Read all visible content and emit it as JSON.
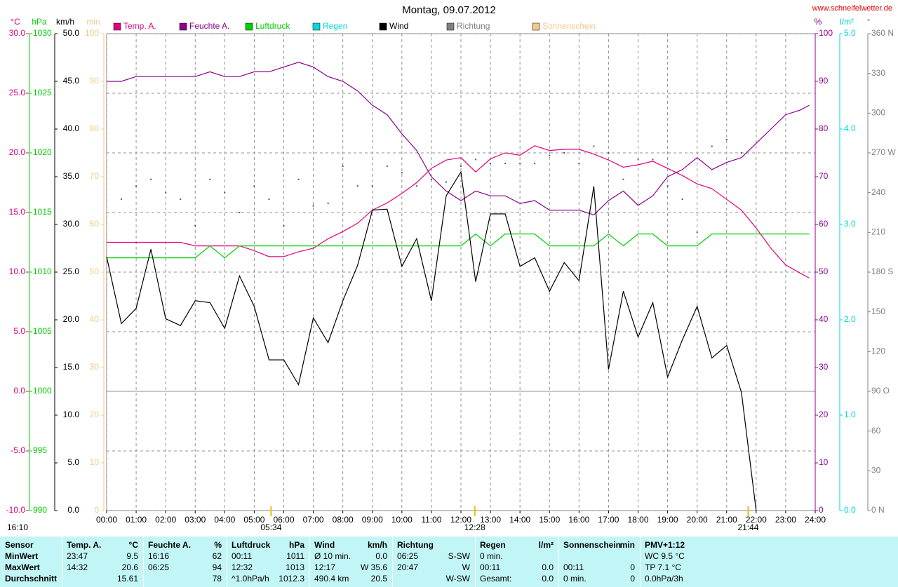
{
  "chart_data": {
    "type": "line",
    "title": "Montag, 09.07.2012",
    "source": "www.schneifelwetter.de",
    "timestamp": "16:10",
    "grid": true,
    "xlim": [
      0,
      24
    ],
    "xticks": [
      {
        "value": 0,
        "label": "00:00"
      },
      {
        "value": 1,
        "label": "01:00"
      },
      {
        "value": 2,
        "label": "02:00"
      },
      {
        "value": 3,
        "label": "03:00"
      },
      {
        "value": 4,
        "label": "04:00"
      },
      {
        "value": 5,
        "label": "05:00"
      },
      {
        "value": 6,
        "label": "06:00"
      },
      {
        "value": 7,
        "label": "07:00"
      },
      {
        "value": 8,
        "label": "08:00"
      },
      {
        "value": 9,
        "label": "09:00"
      },
      {
        "value": 10,
        "label": "10:00"
      },
      {
        "value": 11,
        "label": "11:00"
      },
      {
        "value": 12,
        "label": "12:00"
      },
      {
        "value": 13,
        "label": "13:00"
      },
      {
        "value": 14,
        "label": "14:00"
      },
      {
        "value": 15,
        "label": "15:00"
      },
      {
        "value": 16,
        "label": "16:00"
      },
      {
        "value": 17,
        "label": "17:00"
      },
      {
        "value": 18,
        "label": "18:00"
      },
      {
        "value": 19,
        "label": "19:00"
      },
      {
        "value": 20,
        "label": "20:00"
      },
      {
        "value": 21,
        "label": "21:00"
      },
      {
        "value": 22,
        "label": "22:00"
      },
      {
        "value": 23,
        "label": "23:00"
      },
      {
        "value": 24,
        "label": "24:00"
      }
    ],
    "x": [
      0,
      0.5,
      1,
      1.5,
      2,
      2.5,
      3,
      3.5,
      4,
      4.5,
      5,
      5.5,
      6,
      6.5,
      7,
      7.5,
      8,
      8.5,
      9,
      9.5,
      10,
      10.5,
      11,
      11.5,
      12,
      12.5,
      13,
      13.5,
      14,
      14.5,
      15,
      15.5,
      16,
      16.5,
      17,
      17.5,
      18,
      18.5,
      19,
      19.5,
      20,
      20.5,
      21,
      21.5,
      22,
      22.5,
      23,
      23.5,
      23.8
    ],
    "series": [
      {
        "name": "Temp. A.",
        "unit": "°C",
        "color": "#e0007c",
        "ylim": [
          -10,
          30
        ],
        "yticks": [
          {
            "value": -10,
            "label": "-10.0"
          },
          {
            "value": -5,
            "label": "-5.0"
          },
          {
            "value": 0,
            "label": "0.0"
          },
          {
            "value": 5,
            "label": "5.0"
          },
          {
            "value": 10,
            "label": "10.0"
          },
          {
            "value": 15,
            "label": "15.0"
          },
          {
            "value": 20,
            "label": "20.0"
          },
          {
            "value": 25,
            "label": "25.0"
          },
          {
            "value": 30,
            "label": "30.0"
          }
        ],
        "values": [
          12.5,
          12.5,
          12.5,
          12.5,
          12.5,
          12.5,
          12.2,
          12.2,
          12.2,
          12.2,
          11.8,
          11.3,
          11.3,
          11.7,
          12.0,
          12.8,
          13.4,
          14.1,
          15.2,
          15.8,
          16.6,
          17.5,
          18.7,
          19.4,
          19.6,
          18.4,
          19.5,
          20.0,
          19.8,
          20.6,
          20.2,
          20.3,
          20.3,
          19.9,
          19.4,
          18.8,
          19.0,
          19.3,
          18.7,
          18.1,
          17.4,
          17.0,
          16.1,
          15.2,
          13.7,
          12.0,
          10.6,
          9.9,
          9.5
        ]
      },
      {
        "name": "Feuchte A.",
        "unit": "%",
        "color": "#8c008c",
        "ylim": [
          0,
          100
        ],
        "yticks": [
          0,
          10,
          20,
          30,
          40,
          50,
          60,
          70,
          80,
          90,
          100
        ],
        "values": [
          90,
          90,
          91,
          91,
          91,
          91,
          91,
          92,
          91,
          91,
          92,
          92,
          93,
          94,
          93,
          91,
          90,
          88,
          85,
          83,
          79,
          75.5,
          70,
          67,
          65,
          67,
          66,
          66,
          64.4,
          65,
          63,
          63,
          63,
          62,
          65,
          67,
          64,
          66,
          70,
          71.5,
          74,
          71.5,
          73,
          74,
          77,
          80,
          83,
          84,
          85
        ]
      },
      {
        "name": "Luftdruck",
        "unit": "hPa",
        "color": "#00d000",
        "ylim": [
          990,
          1030
        ],
        "yticks": [
          990,
          995,
          1000,
          1005,
          1010,
          1015,
          1020,
          1025,
          1030
        ],
        "values": [
          1011.2,
          1011.2,
          1011.2,
          1011.2,
          1011.2,
          1011.2,
          1011.2,
          1012.2,
          1011.2,
          1012.2,
          1012.2,
          1012.2,
          1012.2,
          1012.2,
          1012.2,
          1012.2,
          1012.2,
          1012.2,
          1012.2,
          1012.2,
          1012.2,
          1012.2,
          1012.2,
          1012.2,
          1012.2,
          1013.2,
          1012.2,
          1013.2,
          1013.2,
          1013.2,
          1012.2,
          1012.2,
          1012.2,
          1012.2,
          1013.2,
          1012.2,
          1013.2,
          1013.2,
          1012.2,
          1012.2,
          1012.2,
          1013.2,
          1013.2,
          1013.2,
          1013.2,
          1013.2,
          1013.2,
          1013.2,
          1013.2
        ]
      },
      {
        "name": "Regen",
        "unit": "l/m²",
        "color": "#00d8d8",
        "ylim": [
          0,
          5
        ],
        "yticks": [
          {
            "value": 0,
            "label": "0.0"
          },
          {
            "value": 1,
            "label": "1.0"
          },
          {
            "value": 2,
            "label": "2.0"
          },
          {
            "value": 3,
            "label": "3.0"
          },
          {
            "value": 4,
            "label": "4.0"
          },
          {
            "value": 5,
            "label": "5.0"
          }
        ]
      },
      {
        "name": "Wind",
        "unit": "km/h",
        "color": "#000000",
        "ylim": [
          0,
          50
        ],
        "yticks": [
          {
            "value": 0,
            "label": "0.0"
          },
          {
            "value": 5,
            "label": "5.0"
          },
          {
            "value": 10,
            "label": "10.0"
          },
          {
            "value": 15,
            "label": "15.0"
          },
          {
            "value": 20,
            "label": "20.0"
          },
          {
            "value": 25,
            "label": "25.0"
          },
          {
            "value": 30,
            "label": "30.0"
          },
          {
            "value": 35,
            "label": "35.0"
          },
          {
            "value": 40,
            "label": "40.0"
          },
          {
            "value": 45,
            "label": "45.0"
          },
          {
            "value": 50,
            "label": "50.0"
          }
        ],
        "values": [
          26.6,
          19.6,
          21.2,
          27.4,
          20.1,
          19.4,
          22,
          21.8,
          19.1,
          24.6,
          21.4,
          15.8,
          15.8,
          13.2,
          20.2,
          17.6,
          22,
          25.7,
          31.5,
          31.6,
          25.6,
          28.5,
          22,
          33,
          35.5,
          24,
          31.1,
          31.1,
          25.6,
          26.5,
          23,
          26,
          24.1,
          34,
          14.8,
          23,
          18.2,
          21.8,
          14,
          17.9,
          21.4,
          16,
          17.3,
          12.4,
          0,
          null,
          null,
          null,
          null
        ]
      },
      {
        "name": "Richtung",
        "unit": "°",
        "color": "#808080",
        "style": "dots",
        "ylim": [
          0,
          360
        ],
        "yticks": [
          {
            "value": 0,
            "label": "0 N"
          },
          30,
          60,
          {
            "value": 90,
            "label": "90 O"
          },
          120,
          150,
          {
            "value": 180,
            "label": "180 S"
          },
          210,
          240,
          {
            "value": 270,
            "label": "270 W"
          },
          300,
          330,
          {
            "value": 360,
            "label": "360 N"
          }
        ],
        "values": [
          null,
          235,
          245,
          250,
          240,
          235,
          215,
          250,
          240,
          225,
          245,
          235,
          215,
          250,
          230,
          232,
          260,
          245,
          245,
          260,
          255,
          245,
          250,
          248,
          260,
          265,
          262,
          262,
          262,
          262,
          268,
          270,
          262,
          275,
          270,
          250,
          265,
          265,
          245,
          235,
          210,
          275,
          280,
          270,
          null,
          null,
          null,
          null,
          null
        ]
      },
      {
        "name": "Sonnenschein",
        "unit": "min",
        "color": "#f2c88c",
        "ylim": [
          0,
          100
        ],
        "yticks": [
          0,
          10,
          20,
          30,
          40,
          50,
          60,
          70,
          80,
          90,
          100
        ]
      }
    ],
    "annotations": [
      {
        "x": 5.57,
        "label": "05:34"
      },
      {
        "x": 12.47,
        "label": "12:28"
      },
      {
        "x": 21.73,
        "label": "21:44"
      }
    ]
  },
  "table": {
    "columns": [
      {
        "name": "Sensor"
      },
      {
        "name": "Temp. A.",
        "unit": "°C"
      },
      {
        "name": "Feuchte A.",
        "unit": "%"
      },
      {
        "name": "Luftdruck",
        "unit": "hPa"
      },
      {
        "name": "Wind",
        "unit": "km/h"
      },
      {
        "name": "Richtung"
      },
      {
        "name": "Regen",
        "unit": "l/m²"
      },
      {
        "name": "Sonnenschein",
        "unit": "min"
      },
      {
        "name": "PMV+1:12"
      }
    ],
    "rows": [
      {
        "label": "MinWert",
        "cells": [
          {
            "left": "23:47",
            "right": "9.5"
          },
          {
            "left": "16:16",
            "right": "62"
          },
          {
            "left": "00:11",
            "right": "1011"
          },
          {
            "left": "Ø 10 min.",
            "right": "0.0"
          },
          {
            "left": "06:25",
            "right": "S-SW"
          },
          {
            "left": "0 min."
          },
          {},
          {
            "left": "WC 9.5 °C"
          }
        ]
      },
      {
        "label": "MaxWert",
        "cells": [
          {
            "left": "14:32",
            "right": "20.6"
          },
          {
            "left": "06:25",
            "right": "94"
          },
          {
            "left": "12:32",
            "right": "1013"
          },
          {
            "left": "12:17",
            "right": "W 35.6"
          },
          {
            "left": "20:47",
            "right": "W"
          },
          {
            "left": "00:11",
            "right": "0.0"
          },
          {
            "left": "00:11",
            "right": "0"
          },
          {
            "left": "TP 7.1 °C"
          }
        ]
      },
      {
        "label": "Durchschnitt",
        "cells": [
          {
            "right": "15.61"
          },
          {
            "right": "78"
          },
          {
            "left": "^1.0hPa/h",
            "right": "1012.3"
          },
          {
            "left": "490.4 km",
            "right": "20.5"
          },
          {
            "right": "W-SW"
          },
          {
            "left": "Gesamt:",
            "right": "0.0"
          },
          {
            "left": "0 min.",
            "right": "0"
          },
          {
            "left": "0.0hPa/3h"
          }
        ]
      }
    ]
  }
}
